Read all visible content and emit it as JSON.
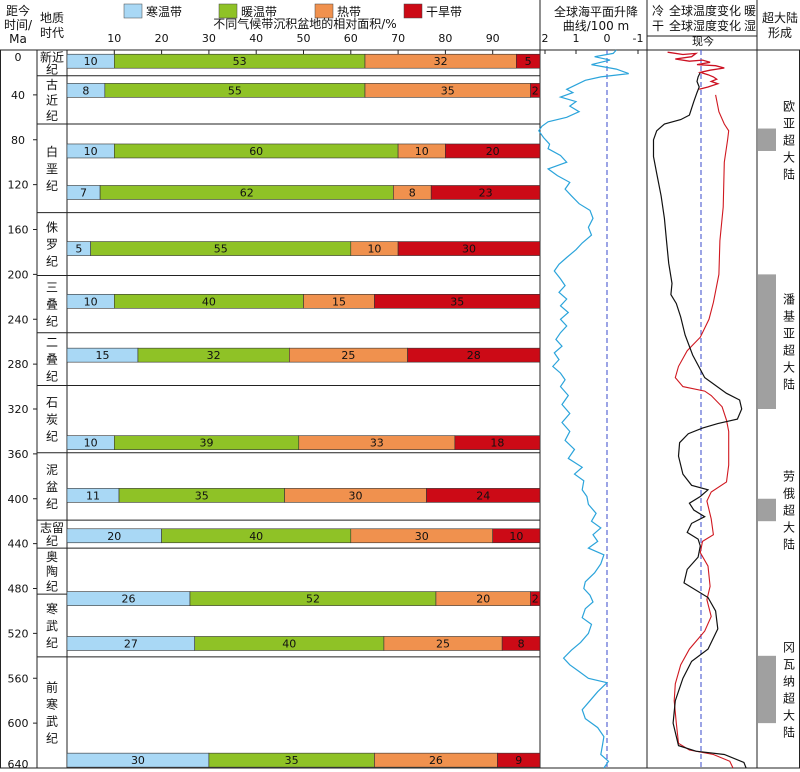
{
  "chart_data": {
    "type": "bar",
    "headers": {
      "age_line1": "距今",
      "age_line2": "时间/",
      "age_line3": "Ma",
      "period_line1": "地质",
      "period_line2": "时代",
      "main_title": "不同气候带沉积盆地的相对面积/%",
      "sea_title_line1": "全球海平面升降",
      "sea_title_line2": "曲线/100 m",
      "cold": "冷",
      "warm": "暖",
      "dry": "干",
      "wet": "湿",
      "temp_title": "全球温度变化",
      "humid_title": "全球湿度变化",
      "present": "现今",
      "sc_line1": "超大陆",
      "sc_line2": "形成"
    },
    "legend": [
      {
        "name": "寒温带",
        "color": "#a9d8f5"
      },
      {
        "name": "暖温带",
        "color": "#8fc226"
      },
      {
        "name": "热带",
        "color": "#f0914e"
      },
      {
        "name": "干旱带",
        "color": "#cc0a16"
      }
    ],
    "series_colors": {
      "sea_level": "#2ba4db",
      "temperature": "#111111",
      "humidity": "#d01820",
      "recent": "#cc1122"
    },
    "x_ticks": [
      "10",
      "20",
      "30",
      "40",
      "50",
      "60",
      "70",
      "80",
      "90"
    ],
    "age_ticks": [
      "0",
      "40",
      "80",
      "120",
      "160",
      "200",
      "240",
      "280",
      "320",
      "360",
      "400",
      "440",
      "480",
      "520",
      "560",
      "600",
      "640"
    ],
    "sea_ticks": [
      "2",
      "1",
      "0",
      "-1"
    ],
    "age_range": [
      0,
      640
    ],
    "periods": [
      {
        "name": "新近纪",
        "chars": [
          "新近",
          "纪"
        ],
        "top": 0,
        "bottom": 23
      },
      {
        "name": "古近纪",
        "chars": [
          "古",
          "近",
          "纪"
        ],
        "top": 23,
        "bottom": 66
      },
      {
        "name": "白垩纪",
        "chars": [
          "白",
          "垩",
          "纪"
        ],
        "top": 66,
        "bottom": 145
      },
      {
        "name": "侏罗纪",
        "chars": [
          "侏",
          "罗",
          "纪"
        ],
        "top": 145,
        "bottom": 201
      },
      {
        "name": "三叠纪",
        "chars": [
          "三",
          "叠",
          "纪"
        ],
        "top": 201,
        "bottom": 252
      },
      {
        "name": "二叠纪",
        "chars": [
          "二",
          "叠",
          "纪"
        ],
        "top": 252,
        "bottom": 299
      },
      {
        "name": "石炭纪",
        "chars": [
          "石",
          "炭",
          "纪"
        ],
        "top": 299,
        "bottom": 359
      },
      {
        "name": "泥盆纪",
        "chars": [
          "泥",
          "盆",
          "纪"
        ],
        "top": 359,
        "bottom": 419
      },
      {
        "name": "志留纪",
        "chars": [
          "志留",
          "纪"
        ],
        "top": 419,
        "bottom": 444
      },
      {
        "name": "奥陶纪",
        "chars": [
          "奥",
          "陶",
          "纪"
        ],
        "top": 444,
        "bottom": 485
      },
      {
        "name": "寒武纪",
        "chars": [
          "寒",
          "武",
          "纪"
        ],
        "top": 485,
        "bottom": 541
      },
      {
        "name": "前寒武纪",
        "chars": [
          "前",
          "寒",
          "武",
          "纪"
        ],
        "top": 541,
        "bottom": 640
      }
    ],
    "bars": [
      {
        "age": 10,
        "values": [
          10,
          53,
          32,
          5
        ]
      },
      {
        "age": 36,
        "values": [
          8,
          55,
          35,
          2
        ]
      },
      {
        "age": 90,
        "values": [
          10,
          60,
          10,
          20
        ]
      },
      {
        "age": 127,
        "values": [
          7,
          62,
          8,
          23
        ]
      },
      {
        "age": 177,
        "values": [
          5,
          55,
          10,
          30
        ]
      },
      {
        "age": 224,
        "values": [
          10,
          40,
          15,
          35
        ]
      },
      {
        "age": 272,
        "values": [
          15,
          32,
          25,
          28
        ]
      },
      {
        "age": 350,
        "values": [
          10,
          39,
          33,
          18
        ]
      },
      {
        "age": 397,
        "values": [
          11,
          35,
          30,
          24
        ]
      },
      {
        "age": 433,
        "values": [
          20,
          40,
          30,
          10
        ]
      },
      {
        "age": 489,
        "values": [
          26,
          52,
          20,
          2
        ]
      },
      {
        "age": 529,
        "values": [
          27,
          40,
          25,
          8
        ]
      },
      {
        "age": 633,
        "values": [
          30,
          35,
          26,
          9
        ]
      }
    ],
    "sea_level": [
      [
        -0.3,
        0
      ],
      [
        -0.2,
        3
      ],
      [
        0.4,
        6
      ],
      [
        -0.1,
        9
      ],
      [
        0.5,
        13
      ],
      [
        -0.3,
        17
      ],
      [
        -0.7,
        21
      ],
      [
        0.2,
        24
      ],
      [
        0.7,
        27
      ],
      [
        1.0,
        31
      ],
      [
        1.3,
        35
      ],
      [
        1.1,
        38
      ],
      [
        1.5,
        42
      ],
      [
        1.0,
        46
      ],
      [
        1.2,
        50
      ],
      [
        0.9,
        55
      ],
      [
        1.3,
        60
      ],
      [
        1.9,
        64
      ],
      [
        2.1,
        68
      ],
      [
        2.2,
        72
      ],
      [
        2.05,
        78
      ],
      [
        1.85,
        84
      ],
      [
        1.9,
        88
      ],
      [
        1.5,
        94
      ],
      [
        1.3,
        100
      ],
      [
        1.9,
        106
      ],
      [
        1.6,
        112
      ],
      [
        1.2,
        118
      ],
      [
        1.35,
        124
      ],
      [
        1.15,
        130
      ],
      [
        0.9,
        137
      ],
      [
        0.55,
        143
      ],
      [
        0.45,
        150
      ],
      [
        0.6,
        158
      ],
      [
        0.5,
        165
      ],
      [
        0.8,
        172
      ],
      [
        1.0,
        178
      ],
      [
        1.3,
        185
      ],
      [
        1.55,
        191
      ],
      [
        1.7,
        197
      ],
      [
        1.5,
        204
      ],
      [
        1.35,
        210
      ],
      [
        1.55,
        216
      ],
      [
        1.3,
        222
      ],
      [
        1.5,
        228
      ],
      [
        1.25,
        234
      ],
      [
        1.5,
        240
      ],
      [
        1.3,
        246
      ],
      [
        1.5,
        252
      ],
      [
        1.65,
        258
      ],
      [
        1.45,
        264
      ],
      [
        1.7,
        270
      ],
      [
        1.55,
        276
      ],
      [
        1.75,
        282
      ],
      [
        1.5,
        288
      ],
      [
        1.35,
        294
      ],
      [
        1.5,
        300
      ],
      [
        1.25,
        308
      ],
      [
        1.45,
        316
      ],
      [
        1.2,
        324
      ],
      [
        1.45,
        332
      ],
      [
        1.2,
        340
      ],
      [
        1.35,
        348
      ],
      [
        1.05,
        356
      ],
      [
        1.25,
        364
      ],
      [
        0.8,
        372
      ],
      [
        1.05,
        378
      ],
      [
        0.75,
        384
      ],
      [
        0.8,
        392
      ],
      [
        0.65,
        398
      ],
      [
        0.6,
        405
      ],
      [
        0.35,
        413
      ],
      [
        0.5,
        420
      ],
      [
        0.2,
        426
      ],
      [
        0.45,
        432
      ],
      [
        0.3,
        438
      ],
      [
        0.6,
        444
      ],
      [
        0.1,
        450
      ],
      [
        0.2,
        458
      ],
      [
        0.4,
        466
      ],
      [
        0.7,
        474
      ],
      [
        0.75,
        480
      ],
      [
        0.55,
        486
      ],
      [
        0.45,
        492
      ],
      [
        0.7,
        498
      ],
      [
        0.8,
        506
      ],
      [
        0.5,
        512
      ],
      [
        0.6,
        520
      ],
      [
        0.85,
        528
      ],
      [
        1.15,
        535
      ],
      [
        1.4,
        542
      ],
      [
        1.2,
        548
      ],
      [
        0.9,
        554
      ],
      [
        0.6,
        560
      ],
      [
        0.0,
        564
      ],
      [
        0.3,
        572
      ],
      [
        0.55,
        580
      ],
      [
        0.8,
        588
      ],
      [
        0.7,
        596
      ],
      [
        0.3,
        604
      ],
      [
        0.1,
        612
      ],
      [
        0.15,
        620
      ],
      [
        0.2,
        628
      ],
      [
        -0.05,
        634
      ],
      [
        0.1,
        640
      ]
    ],
    "temperature": [
      [
        0.48,
        20
      ],
      [
        0.46,
        24
      ],
      [
        0.45,
        28
      ],
      [
        0.47,
        33
      ],
      [
        0.45,
        38
      ],
      [
        0.42,
        46
      ],
      [
        0.4,
        52
      ],
      [
        0.38,
        58
      ],
      [
        0.3,
        62
      ],
      [
        0.15,
        66
      ],
      [
        0.08,
        72
      ],
      [
        0.05,
        80
      ],
      [
        0.05,
        95
      ],
      [
        0.08,
        110
      ],
      [
        0.12,
        130
      ],
      [
        0.15,
        150
      ],
      [
        0.17,
        170
      ],
      [
        0.19,
        190
      ],
      [
        0.22,
        208
      ],
      [
        0.21,
        218
      ],
      [
        0.26,
        226
      ],
      [
        0.3,
        238
      ],
      [
        0.34,
        254
      ],
      [
        0.41,
        272
      ],
      [
        0.52,
        292
      ],
      [
        0.72,
        306
      ],
      [
        0.84,
        312
      ],
      [
        0.86,
        320
      ],
      [
        0.82,
        329
      ],
      [
        0.64,
        333
      ],
      [
        0.5,
        337
      ],
      [
        0.37,
        342
      ],
      [
        0.29,
        350
      ],
      [
        0.28,
        362
      ],
      [
        0.32,
        378
      ],
      [
        0.4,
        388
      ],
      [
        0.55,
        392
      ],
      [
        0.48,
        398
      ],
      [
        0.38,
        404
      ],
      [
        0.42,
        410
      ],
      [
        0.52,
        416
      ],
      [
        0.4,
        422
      ],
      [
        0.36,
        430
      ],
      [
        0.46,
        436
      ],
      [
        0.48,
        442
      ],
      [
        0.46,
        452
      ],
      [
        0.36,
        463
      ],
      [
        0.33,
        475
      ],
      [
        0.55,
        488
      ],
      [
        0.62,
        500
      ],
      [
        0.64,
        516
      ],
      [
        0.55,
        534
      ],
      [
        0.4,
        545
      ],
      [
        0.32,
        560
      ],
      [
        0.25,
        580
      ],
      [
        0.23,
        600
      ],
      [
        0.28,
        620
      ],
      [
        0.44,
        625
      ],
      [
        0.7,
        628
      ],
      [
        0.88,
        635
      ],
      [
        0.9,
        640
      ]
    ],
    "humidity": [
      [
        0.62,
        40
      ],
      [
        0.65,
        55
      ],
      [
        0.7,
        66
      ],
      [
        0.74,
        72
      ],
      [
        0.73,
        80
      ],
      [
        0.7,
        100
      ],
      [
        0.69,
        140
      ],
      [
        0.66,
        170
      ],
      [
        0.65,
        200
      ],
      [
        0.6,
        225
      ],
      [
        0.56,
        240
      ],
      [
        0.48,
        256
      ],
      [
        0.36,
        268
      ],
      [
        0.28,
        282
      ],
      [
        0.25,
        292
      ],
      [
        0.32,
        300
      ],
      [
        0.52,
        304
      ],
      [
        0.58,
        308
      ],
      [
        0.68,
        318
      ],
      [
        0.72,
        330
      ],
      [
        0.74,
        340
      ],
      [
        0.74,
        370
      ],
      [
        0.72,
        385
      ],
      [
        0.58,
        394
      ],
      [
        0.54,
        402
      ],
      [
        0.58,
        418
      ],
      [
        0.6,
        432
      ],
      [
        0.5,
        438
      ],
      [
        0.48,
        448
      ],
      [
        0.55,
        460
      ],
      [
        0.57,
        478
      ],
      [
        0.54,
        490
      ],
      [
        0.58,
        505
      ],
      [
        0.52,
        518
      ],
      [
        0.38,
        534
      ],
      [
        0.3,
        548
      ],
      [
        0.25,
        565
      ],
      [
        0.24,
        580
      ],
      [
        0.26,
        600
      ],
      [
        0.28,
        618
      ],
      [
        0.38,
        624
      ],
      [
        0.6,
        628
      ],
      [
        0.75,
        634
      ],
      [
        0.78,
        640
      ]
    ],
    "recent_temp": [
      [
        0.18,
        2
      ],
      [
        0.32,
        4
      ],
      [
        0.44,
        3
      ],
      [
        0.4,
        6
      ],
      [
        0.25,
        8
      ],
      [
        0.38,
        10
      ],
      [
        0.5,
        9
      ],
      [
        0.57,
        11
      ],
      [
        0.45,
        13
      ],
      [
        0.62,
        14
      ],
      [
        0.7,
        16
      ],
      [
        0.57,
        18
      ],
      [
        0.48,
        20
      ],
      [
        0.55,
        22
      ],
      [
        0.6,
        24
      ],
      [
        0.63,
        26
      ],
      [
        0.58,
        28
      ],
      [
        0.64,
        30
      ],
      [
        0.55,
        33
      ],
      [
        0.47,
        35
      ]
    ],
    "supercontinents": [
      {
        "name": "欧亚超大陆",
        "chars": [
          "欧",
          "亚",
          "超",
          "大",
          "陆"
        ],
        "top": 70,
        "bottom": 90
      },
      {
        "name": "潘基亚超大陆",
        "chars": [
          "潘",
          "基",
          "亚",
          "超",
          "大",
          "陆"
        ],
        "top": 200,
        "bottom": 320
      },
      {
        "name": "劳俄超大陆",
        "chars": [
          "劳",
          "俄",
          "超",
          "大",
          "陆"
        ],
        "top": 400,
        "bottom": 420
      },
      {
        "name": "冈瓦纳超大陆",
        "chars": [
          "冈",
          "瓦",
          "纳",
          "超",
          "大",
          "陆"
        ],
        "top": 540,
        "bottom": 600
      }
    ]
  }
}
